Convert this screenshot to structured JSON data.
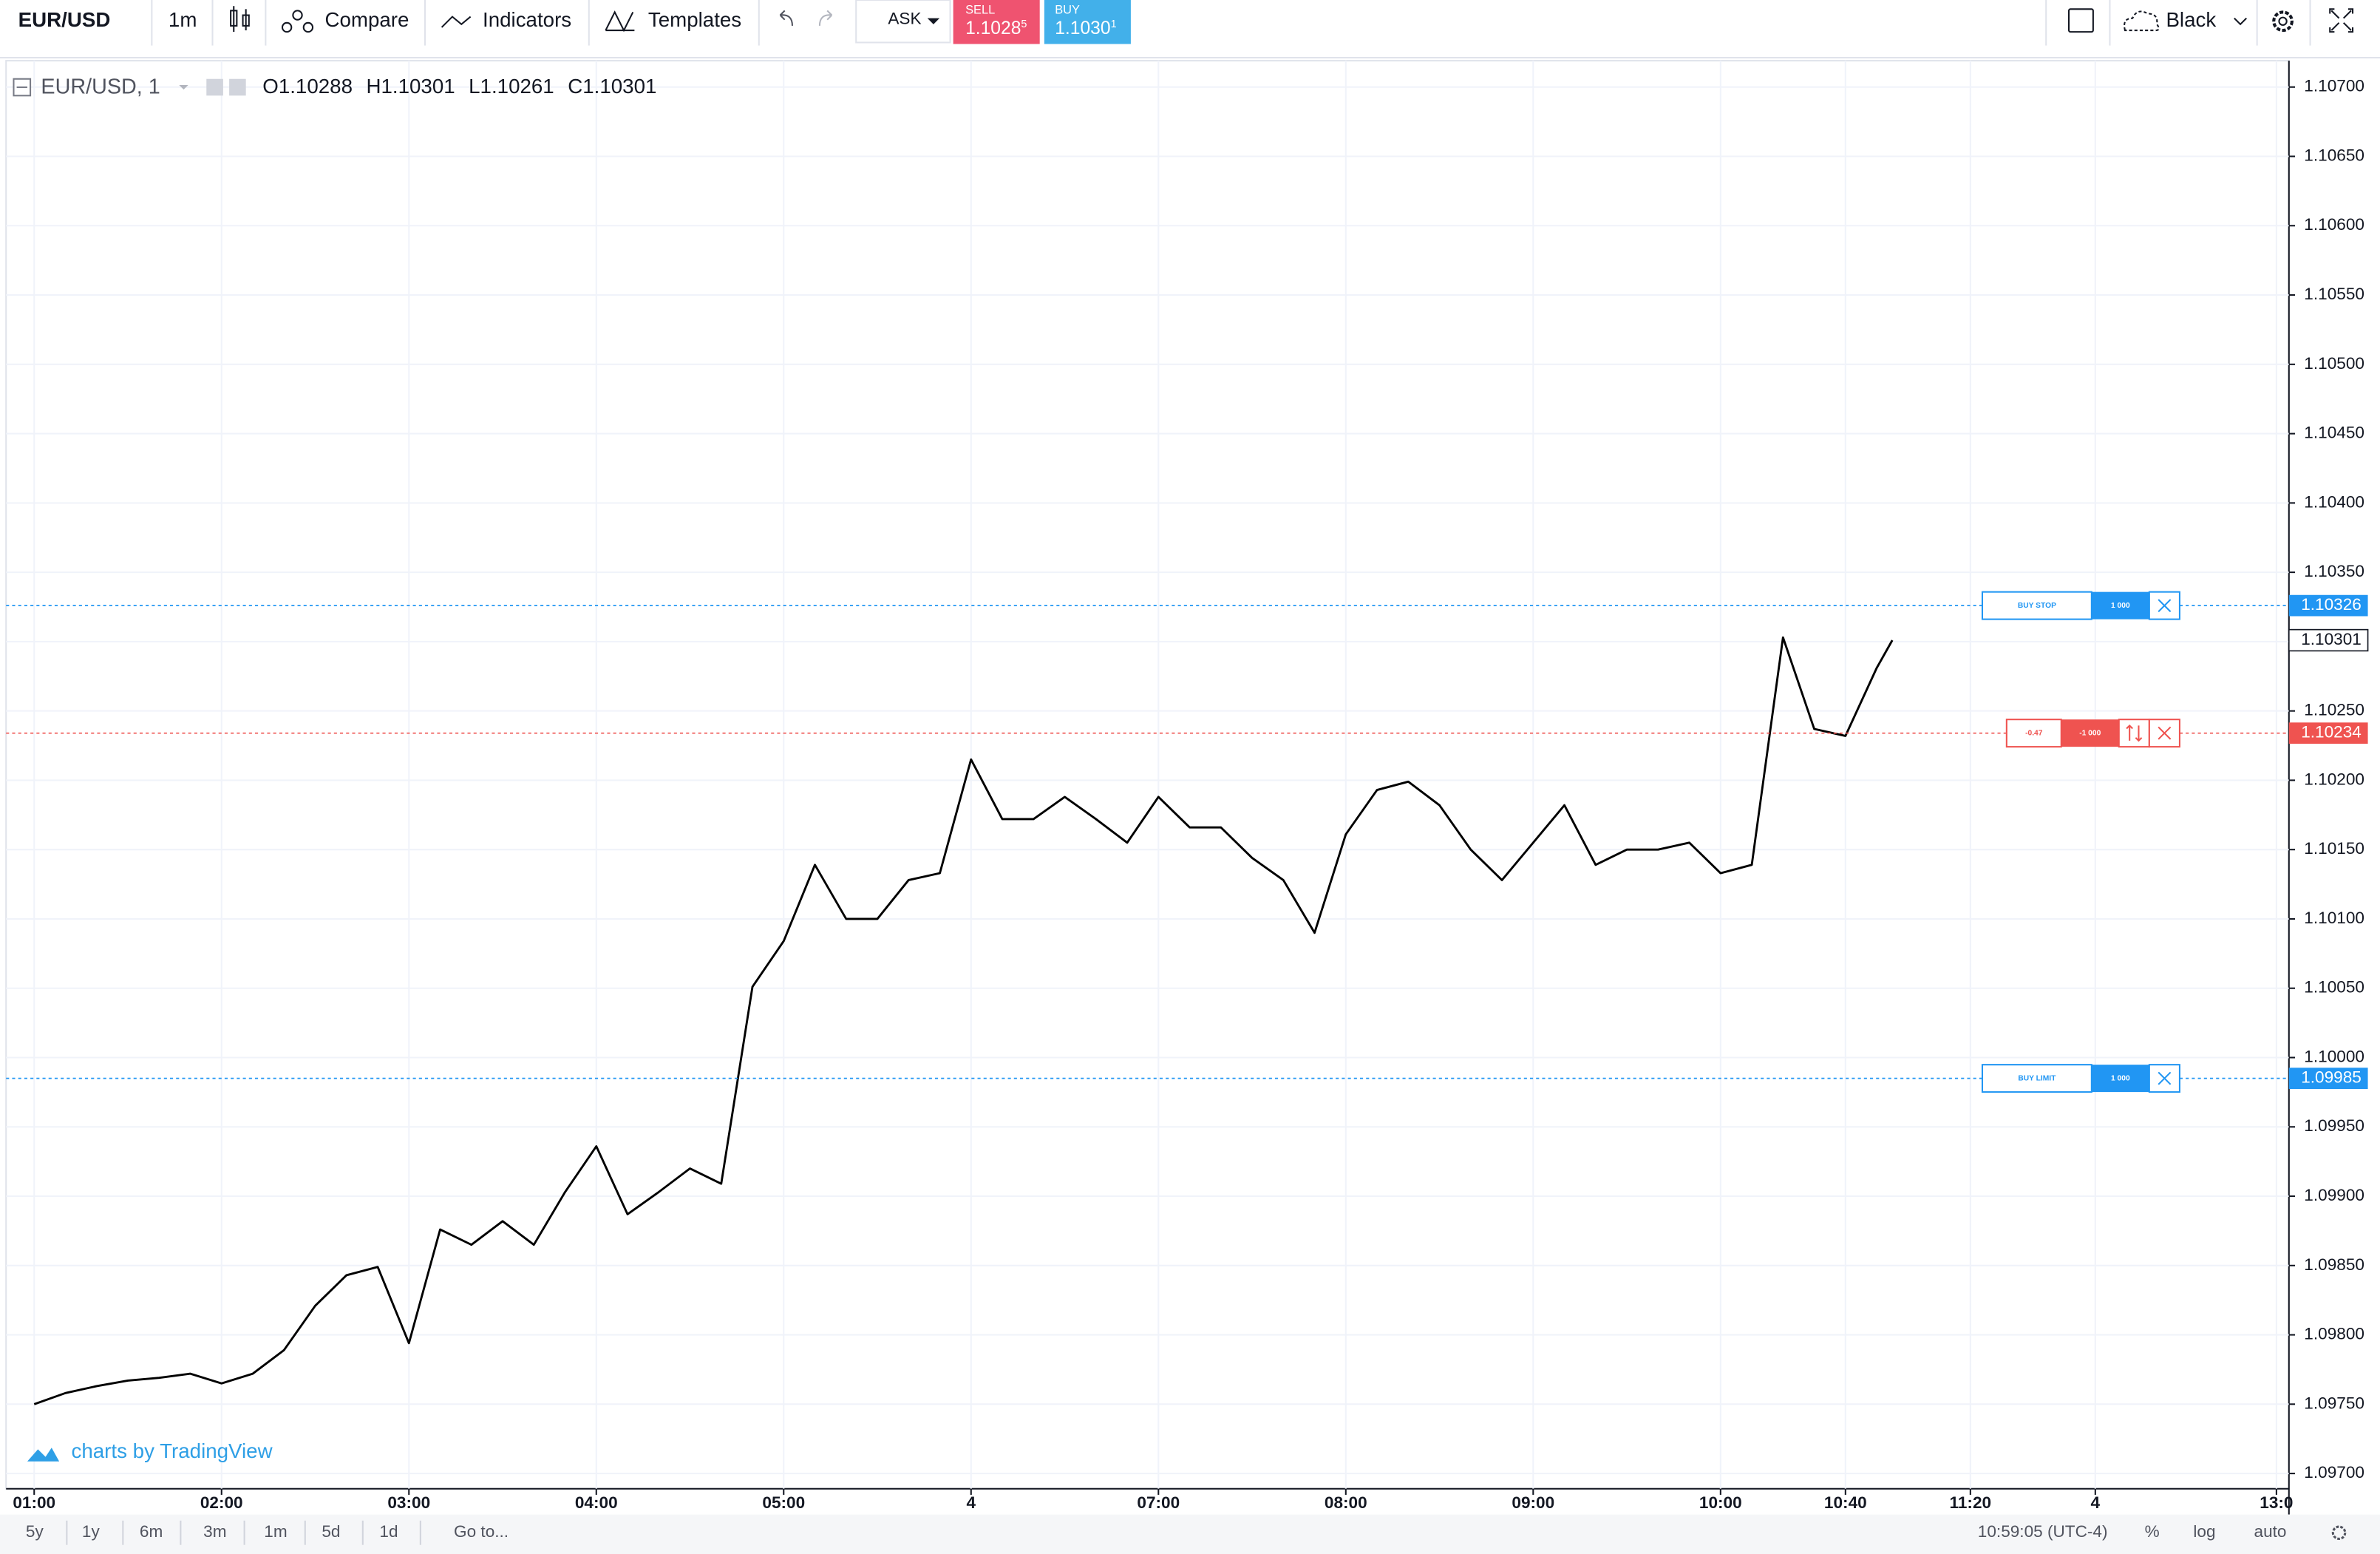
{
  "toolbar": {
    "symbol": "EUR/USD",
    "interval": "1m",
    "compare": "Compare",
    "indicators": "Indicators",
    "templates": "Templates",
    "price_source": "ASK",
    "sell": {
      "label": "SELL",
      "price": "1.1028",
      "pip": "5"
    },
    "buy": {
      "label": "BUY",
      "price": "1.1030",
      "pip": "1"
    },
    "theme": "Black"
  },
  "legend": {
    "title": "EUR/USD, 1",
    "open": {
      "key": "O",
      "value": "1.10288"
    },
    "high": {
      "key": "H",
      "value": "1.10301"
    },
    "low": {
      "key": "L",
      "value": "1.10261"
    },
    "close": {
      "key": "C",
      "value": "1.10301"
    }
  },
  "watermark": "charts by TradingView",
  "bottom_bar": {
    "ranges": [
      "5y",
      "1y",
      "6m",
      "3m",
      "1m",
      "5d",
      "1d"
    ],
    "goto": "Go to...",
    "clock": "10:59:05 (UTC-4)",
    "percent": "%",
    "log": "log",
    "auto": "auto"
  },
  "chart_data": {
    "type": "line",
    "color": "#000000",
    "x": [
      0,
      10,
      20,
      30,
      40,
      50,
      60,
      70,
      80,
      90,
      100,
      110,
      120,
      130,
      140,
      150,
      160,
      170,
      180,
      190,
      200,
      210,
      220,
      230,
      240,
      250,
      260,
      270,
      280,
      290,
      300,
      310,
      320,
      330,
      340,
      350,
      360,
      370,
      380,
      390,
      400,
      410,
      420,
      430,
      440,
      450,
      460,
      470,
      480,
      490,
      500,
      510,
      520,
      530,
      540,
      550,
      560,
      570,
      580,
      590,
      595
    ],
    "values": [
      1.0975,
      1.09758,
      1.09763,
      1.09767,
      1.09769,
      1.09772,
      1.09765,
      1.09772,
      1.09789,
      1.09821,
      1.09843,
      1.09849,
      1.09794,
      1.09876,
      1.09865,
      1.09882,
      1.09865,
      1.09903,
      1.09936,
      1.09887,
      1.09903,
      1.0992,
      1.09909,
      1.10051,
      1.10084,
      1.10139,
      1.101,
      1.101,
      1.10128,
      1.10133,
      1.10215,
      1.10172,
      1.10172,
      1.10188,
      1.10172,
      1.10155,
      1.10188,
      1.10166,
      1.10166,
      1.10144,
      1.10128,
      1.1009,
      1.10161,
      1.10193,
      1.10199,
      1.10182,
      1.1015,
      1.10128,
      1.10155,
      1.10182,
      1.10139,
      1.1015,
      1.1015,
      1.10155,
      1.10133,
      1.10139,
      1.10303,
      1.10237,
      1.10232,
      1.10281,
      1.10301
    ],
    "xlim": [
      -9,
      722
    ],
    "xticks": [
      {
        "value": 0,
        "label": "01:00"
      },
      {
        "value": 60,
        "label": "02:00"
      },
      {
        "value": 120,
        "label": "03:00"
      },
      {
        "value": 180,
        "label": "04:00"
      },
      {
        "value": 240,
        "label": "05:00"
      },
      {
        "value": 300,
        "label": "4"
      },
      {
        "value": 360,
        "label": "07:00"
      },
      {
        "value": 420,
        "label": "08:00"
      },
      {
        "value": 480,
        "label": "09:00"
      },
      {
        "value": 540,
        "label": "10:00"
      },
      {
        "value": 580,
        "label": "10:40"
      },
      {
        "value": 620,
        "label": "11:20"
      },
      {
        "value": 660,
        "label": "4"
      },
      {
        "value": 718,
        "label": "13:0"
      }
    ],
    "ylim": [
      1.09689,
      1.10719
    ],
    "yticks": [
      {
        "value": 1.097,
        "label": "1.09700"
      },
      {
        "value": 1.0975,
        "label": "1.09750"
      },
      {
        "value": 1.098,
        "label": "1.09800"
      },
      {
        "value": 1.0985,
        "label": "1.09850"
      },
      {
        "value": 1.099,
        "label": "1.09900"
      },
      {
        "value": 1.0995,
        "label": "1.09950"
      },
      {
        "value": 1.1,
        "label": "1.10000"
      },
      {
        "value": 1.1005,
        "label": "1.10050"
      },
      {
        "value": 1.101,
        "label": "1.10100"
      },
      {
        "value": 1.1015,
        "label": "1.10150"
      },
      {
        "value": 1.102,
        "label": "1.10200"
      },
      {
        "value": 1.1025,
        "label": "1.10250"
      },
      {
        "value": 1.103,
        "label": "1.10300"
      },
      {
        "value": 1.1035,
        "label": "1.10350"
      },
      {
        "value": 1.104,
        "label": "1.10400"
      },
      {
        "value": 1.1045,
        "label": "1.10450"
      },
      {
        "value": 1.105,
        "label": "1.10500"
      },
      {
        "value": 1.1055,
        "label": "1.10550"
      },
      {
        "value": 1.106,
        "label": "1.10600"
      },
      {
        "value": 1.1065,
        "label": "1.10650"
      },
      {
        "value": 1.107,
        "label": "1.10700"
      }
    ],
    "grid": true,
    "last_price": 1.10301,
    "price_lines": [
      {
        "value": 1.10326,
        "color": "#2196f3",
        "order": {
          "name": "BUY STOP",
          "qty": "1 000"
        }
      },
      {
        "value": 1.10234,
        "color": "#ef5350",
        "order": {
          "name": "-0.47",
          "qty": "-1 000"
        }
      },
      {
        "value": 1.09985,
        "color": "#2196f3",
        "order": {
          "name": "BUY LIMIT",
          "qty": "1 000"
        }
      }
    ]
  }
}
